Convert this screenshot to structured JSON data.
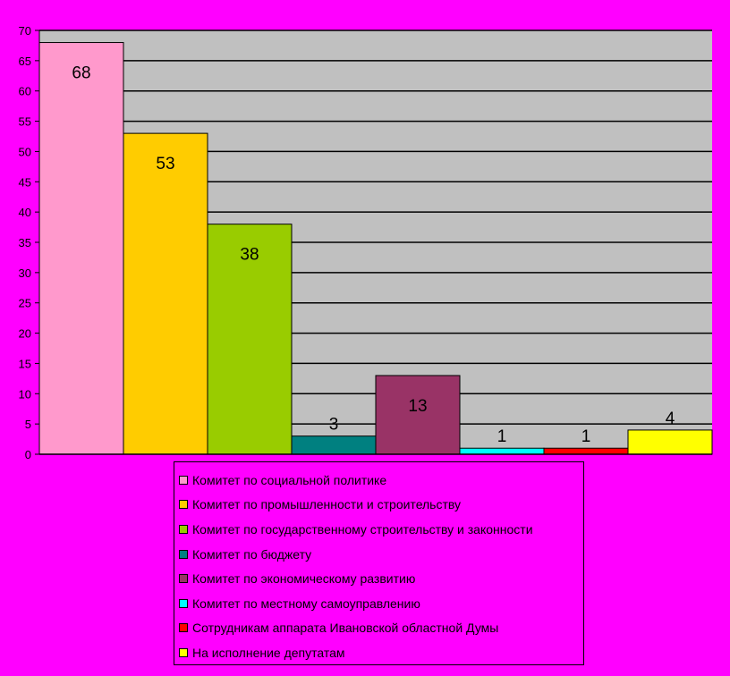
{
  "chart_data": {
    "type": "bar",
    "categories": [
      "Комитет по социальной политике",
      "Комитет по промышленности и строительству",
      "Комитет по государственному строительству и законности",
      "Комитет по бюджету",
      "Комитет по экономическому развитию",
      "Комитет по местному самоуправлению",
      "Сотрудникам аппарата Ивановской областной Думы",
      "На исполнение депутатам"
    ],
    "values": [
      68,
      53,
      38,
      3,
      13,
      1,
      1,
      4
    ],
    "data_labels": [
      "68",
      "53",
      "38",
      "3",
      "13",
      "1",
      "1",
      "4"
    ],
    "colors": [
      "#ff99cc",
      "#ffcc00",
      "#99cc00",
      "#008080",
      "#993366",
      "#00ffff",
      "#ff0000",
      "#ffff00"
    ],
    "ylim": [
      0,
      70
    ],
    "yticks": [
      0,
      5,
      10,
      15,
      20,
      25,
      30,
      35,
      40,
      45,
      50,
      55,
      60,
      65,
      70
    ],
    "ytick_labels": [
      "0",
      "5",
      "10",
      "15",
      "20",
      "25",
      "30",
      "35",
      "40",
      "45",
      "50",
      "55",
      "60",
      "65",
      "70"
    ],
    "grid": true,
    "legend_position": "bottom",
    "title": "",
    "xlabel": "",
    "ylabel": ""
  },
  "style": {
    "page_background": "#ff00ff",
    "plot_background": "#c0c0c0"
  }
}
